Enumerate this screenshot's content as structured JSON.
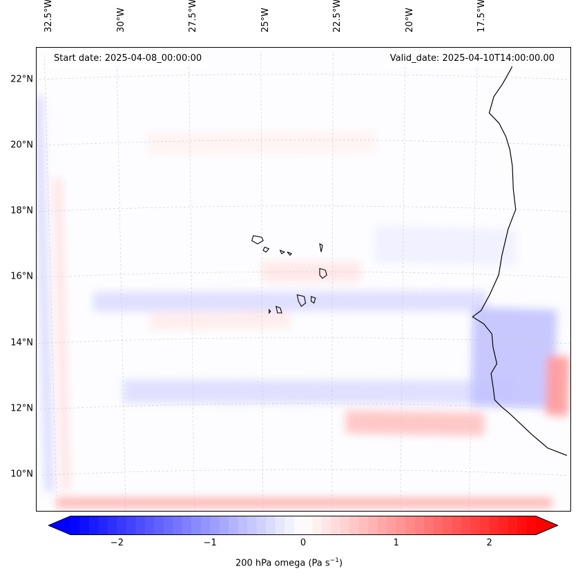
{
  "map": {
    "projection": "lambert-conformal",
    "extent": {
      "lon": [
        -33.0,
        -14.0
      ],
      "lat": [
        8.7,
        22.8
      ]
    },
    "variable": "200 hPa omega",
    "units": "Pa s",
    "units_exponent": "−1",
    "start_date_text": "Start date: 2025-04-08_00:00:00",
    "valid_date_text": "Valid_date: 2025-04-10T14:00:00.00"
  },
  "axes": {
    "lon_ticks": [
      {
        "value": -32.5,
        "label": "32.5°W"
      },
      {
        "value": -30.0,
        "label": "30°W"
      },
      {
        "value": -27.5,
        "label": "27.5°W"
      },
      {
        "value": -25.0,
        "label": "25°W"
      },
      {
        "value": -22.5,
        "label": "22.5°W"
      },
      {
        "value": -20.0,
        "label": "20°W"
      },
      {
        "value": -17.5,
        "label": "17.5°W"
      }
    ],
    "lat_ticks": [
      {
        "value": 22,
        "label": "22°N"
      },
      {
        "value": 20,
        "label": "20°N"
      },
      {
        "value": 18,
        "label": "18°N"
      },
      {
        "value": 16,
        "label": "16°N"
      },
      {
        "value": 14,
        "label": "14°N"
      },
      {
        "value": 12,
        "label": "12°N"
      },
      {
        "value": 10,
        "label": "10°N"
      }
    ]
  },
  "colorbar": {
    "cmap": "bwr",
    "range": [
      -2.5,
      2.5
    ],
    "extend": "both",
    "low_color": "#0000ff",
    "mid_color": "#ffffff",
    "high_color": "#ff0000",
    "tick_values": [
      -2,
      -1,
      0,
      1,
      2
    ],
    "tick_labels": [
      "−2",
      "−1",
      "0",
      "1",
      "2"
    ],
    "label_text": "200 hPa omega (Pa s"
  },
  "field_features": [
    {
      "name": "southern-edge-ascent-band",
      "lon": [
        -32.5,
        -14.5
      ],
      "lat": [
        9.0,
        9.3
      ],
      "value": 0.8
    },
    {
      "name": "western-edge-descent-band",
      "lon": [
        -32.9,
        -32.6
      ],
      "lat": [
        9.5,
        21.5
      ],
      "value": -0.4
    },
    {
      "name": "western-edge-strip",
      "lon": [
        -32.3,
        -32.0
      ],
      "lat": [
        9.5,
        19.0
      ],
      "value": 0.3
    },
    {
      "name": "band-15n-descent",
      "lon": [
        -31.0,
        -17.0
      ],
      "lat": [
        14.9,
        15.5
      ],
      "value": -0.35
    },
    {
      "name": "band-12-5n-descent",
      "lon": [
        -30.0,
        -16.0
      ],
      "lat": [
        12.1,
        12.8
      ],
      "value": -0.35
    },
    {
      "name": "senegal-coast-descent",
      "lon": [
        -17.5,
        -14.5
      ],
      "lat": [
        12.0,
        15.0
      ],
      "value": -0.6
    },
    {
      "name": "coast-ascent-13n",
      "lon": [
        -14.8,
        -14.0
      ],
      "lat": [
        11.8,
        13.6
      ],
      "value": 1.0
    },
    {
      "name": "ascent-11-5n",
      "lon": [
        -22.0,
        -17.0
      ],
      "lat": [
        11.1,
        11.8
      ],
      "value": 0.6
    },
    {
      "name": "cape-verde-ascent",
      "lon": [
        -25.0,
        -21.5
      ],
      "lat": [
        15.7,
        16.3
      ],
      "value": 0.25
    },
    {
      "name": "weak-ascent-20n",
      "lon": [
        -29.0,
        -21.0
      ],
      "lat": [
        19.6,
        20.3
      ],
      "value": 0.12
    },
    {
      "name": "weak-descent-17n",
      "lon": [
        -21.0,
        -16.0
      ],
      "lat": [
        16.3,
        17.4
      ],
      "value": -0.15
    },
    {
      "name": "weak-ascent-14-5n",
      "lon": [
        -29.0,
        -24.0
      ],
      "lat": [
        14.3,
        14.8
      ],
      "value": 0.2
    }
  ],
  "coastline": {
    "africa": [
      [
        -16.2,
        22.8
      ],
      [
        -16.3,
        22.3
      ],
      [
        -16.6,
        21.8
      ],
      [
        -16.9,
        21.4
      ],
      [
        -17.05,
        20.9
      ],
      [
        -16.7,
        20.6
      ],
      [
        -16.45,
        20.2
      ],
      [
        -16.3,
        19.8
      ],
      [
        -16.2,
        19.3
      ],
      [
        -16.15,
        18.6
      ],
      [
        -16.05,
        18.0
      ],
      [
        -16.3,
        17.4
      ],
      [
        -16.5,
        16.6
      ],
      [
        -16.6,
        16.0
      ],
      [
        -16.9,
        15.4
      ],
      [
        -17.2,
        14.9
      ],
      [
        -17.5,
        14.7
      ],
      [
        -17.1,
        14.5
      ],
      [
        -16.8,
        14.2
      ],
      [
        -16.75,
        13.8
      ],
      [
        -16.6,
        13.3
      ],
      [
        -16.8,
        13.0
      ],
      [
        -16.7,
        12.5
      ],
      [
        -16.65,
        12.2
      ],
      [
        -16.4,
        12.0
      ],
      [
        -16.1,
        11.8
      ],
      [
        -15.7,
        11.5
      ],
      [
        -15.3,
        11.2
      ],
      [
        -15.0,
        11.0
      ],
      [
        -14.7,
        10.8
      ],
      [
        -14.0,
        10.6
      ]
    ],
    "islands": [
      [
        [
          -25.3,
          17.1
        ],
        [
          -25.0,
          17.05
        ],
        [
          -24.95,
          16.95
        ],
        [
          -25.15,
          16.85
        ],
        [
          -25.35,
          16.95
        ],
        [
          -25.3,
          17.1
        ]
      ],
      [
        [
          -24.9,
          16.75
        ],
        [
          -24.75,
          16.7
        ],
        [
          -24.85,
          16.6
        ],
        [
          -24.95,
          16.65
        ],
        [
          -24.9,
          16.75
        ]
      ],
      [
        [
          -24.35,
          16.65
        ],
        [
          -24.2,
          16.6
        ],
        [
          -24.3,
          16.55
        ],
        [
          -24.35,
          16.65
        ]
      ],
      [
        [
          -24.1,
          16.6
        ],
        [
          -23.95,
          16.55
        ],
        [
          -24.0,
          16.5
        ],
        [
          -24.1,
          16.6
        ]
      ],
      [
        [
          -22.95,
          16.85
        ],
        [
          -22.85,
          16.8
        ],
        [
          -22.9,
          16.6
        ],
        [
          -22.95,
          16.85
        ]
      ],
      [
        [
          -22.95,
          16.1
        ],
        [
          -22.75,
          16.05
        ],
        [
          -22.7,
          15.9
        ],
        [
          -22.85,
          15.8
        ],
        [
          -22.95,
          15.9
        ],
        [
          -22.95,
          16.1
        ]
      ],
      [
        [
          -23.75,
          15.3
        ],
        [
          -23.5,
          15.25
        ],
        [
          -23.45,
          15.05
        ],
        [
          -23.6,
          14.95
        ],
        [
          -23.7,
          15.1
        ],
        [
          -23.75,
          15.3
        ]
      ],
      [
        [
          -23.25,
          15.25
        ],
        [
          -23.1,
          15.2
        ],
        [
          -23.15,
          15.05
        ],
        [
          -23.25,
          15.1
        ],
        [
          -23.25,
          15.25
        ]
      ],
      [
        [
          -24.5,
          14.95
        ],
        [
          -24.35,
          14.9
        ],
        [
          -24.3,
          14.75
        ],
        [
          -24.45,
          14.75
        ],
        [
          -24.5,
          14.95
        ]
      ],
      [
        [
          -24.75,
          14.85
        ],
        [
          -24.7,
          14.8
        ],
        [
          -24.75,
          14.75
        ],
        [
          -24.75,
          14.85
        ]
      ]
    ]
  }
}
